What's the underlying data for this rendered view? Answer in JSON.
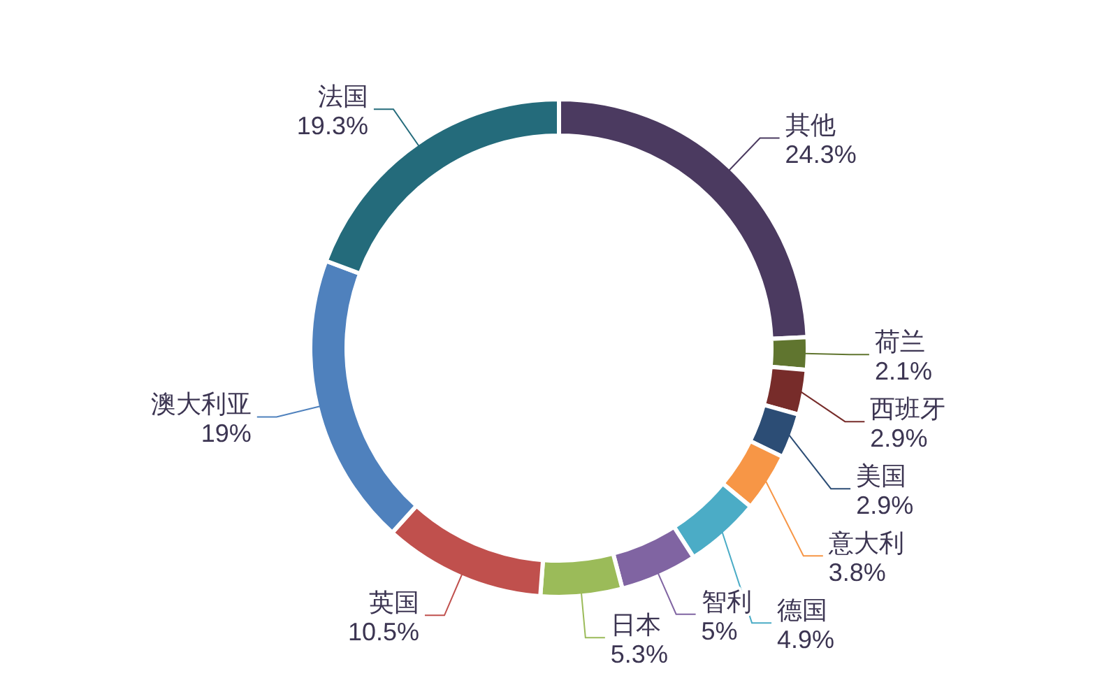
{
  "chart_data": {
    "type": "donut",
    "categories": [
      "其他",
      "荷兰",
      "西班牙",
      "美国",
      "意大利",
      "德国",
      "智利",
      "日本",
      "英国",
      "澳大利亚",
      "法国"
    ],
    "values": [
      24.3,
      2.1,
      2.9,
      2.9,
      3.8,
      4.9,
      5,
      5.3,
      10.5,
      19,
      19.3
    ],
    "colors": [
      "#4b3a60",
      "#60752f",
      "#772c2a",
      "#2c4d75",
      "#f79646",
      "#4bacc6",
      "#8064a2",
      "#9bbb59",
      "#c0504d",
      "#4f81bd",
      "#246b7b"
    ],
    "value_labels": [
      "24.3%",
      "2.1%",
      "2.9%",
      "2.9%",
      "3.8%",
      "4.9%",
      "5%",
      "5.3%",
      "10.5%",
      "19%",
      "19.3%"
    ]
  }
}
